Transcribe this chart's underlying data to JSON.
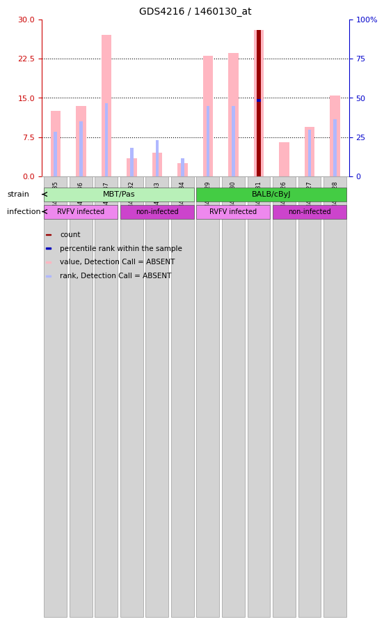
{
  "title": "GDS4216 / 1460130_at",
  "samples": [
    "GSM451635",
    "GSM451636",
    "GSM451637",
    "GSM451632",
    "GSM451633",
    "GSM451634",
    "GSM451629",
    "GSM451630",
    "GSM451631",
    "GSM451626",
    "GSM451627",
    "GSM451628"
  ],
  "pink_bar_heights": [
    12.5,
    13.5,
    27.0,
    3.5,
    4.5,
    2.5,
    23.0,
    23.5,
    28.0,
    6.5,
    9.5,
    15.5
  ],
  "blue_bar_heights": [
    8.5,
    10.5,
    14.0,
    5.5,
    7.0,
    3.5,
    13.5,
    13.5,
    14.5,
    0,
    9.0,
    11.0
  ],
  "red_bar_heights": [
    0,
    0,
    0,
    0,
    0,
    0,
    0,
    0,
    28.0,
    0,
    0,
    0
  ],
  "dark_blue_heights": [
    0,
    0,
    0,
    0,
    0,
    0,
    0,
    0,
    14.5,
    0,
    0,
    0
  ],
  "ylim_left": [
    0,
    30
  ],
  "ylim_right": [
    0,
    100
  ],
  "yticks_left": [
    0,
    7.5,
    15,
    22.5,
    30
  ],
  "yticks_right": [
    0,
    25,
    50,
    75,
    100
  ],
  "pink_color": "#ffb6c1",
  "light_blue_color": "#b0b8ff",
  "red_color": "#990000",
  "dark_blue_color": "#0000bb",
  "strain_green_light": "#b8f0b8",
  "strain_green_dark": "#44cc44",
  "infection_violet_light": "#ee88ee",
  "infection_violet_dark": "#cc44cc",
  "axis_left_color": "#cc0000",
  "axis_right_color": "#0000cc"
}
